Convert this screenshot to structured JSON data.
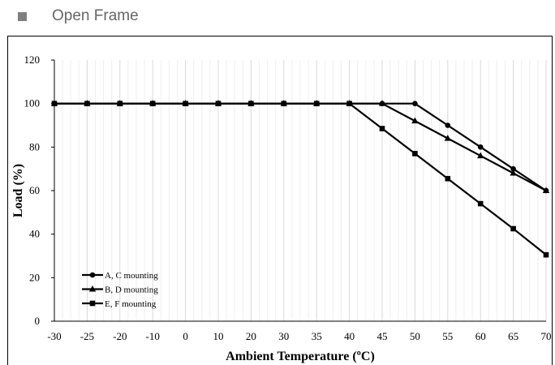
{
  "section": {
    "title": "Open Frame",
    "bullet_icon": "square-bullet-icon"
  },
  "chart_data": {
    "type": "line",
    "title": "",
    "xlabel": "Ambient Temperature (ºC)",
    "ylabel": "Load (%)",
    "categories": [
      "-30",
      "-25",
      "-20",
      "-10",
      "0",
      "10",
      "20",
      "30",
      "35",
      "40",
      "45",
      "50",
      "55",
      "60",
      "65",
      "70"
    ],
    "y_ticks": [
      "0",
      "20",
      "40",
      "60",
      "80",
      "100",
      "120"
    ],
    "ylim": [
      0,
      120
    ],
    "grid": "vertical",
    "legend_position": "bottom-left",
    "series": [
      {
        "name": "A, C mounting",
        "marker": "circle",
        "values": [
          100,
          100,
          100,
          100,
          100,
          100,
          100,
          100,
          100,
          100,
          100,
          100,
          90,
          80,
          70,
          60
        ]
      },
      {
        "name": "B, D mounting",
        "marker": "triangle",
        "values": [
          100,
          100,
          100,
          100,
          100,
          100,
          100,
          100,
          100,
          100,
          100,
          92,
          84,
          76,
          68,
          60
        ]
      },
      {
        "name": "E, F mounting",
        "marker": "square",
        "values": [
          100,
          100,
          100,
          100,
          100,
          100,
          100,
          100,
          100,
          100,
          88.5,
          77,
          65.5,
          54,
          42.5,
          30.5
        ]
      }
    ]
  }
}
